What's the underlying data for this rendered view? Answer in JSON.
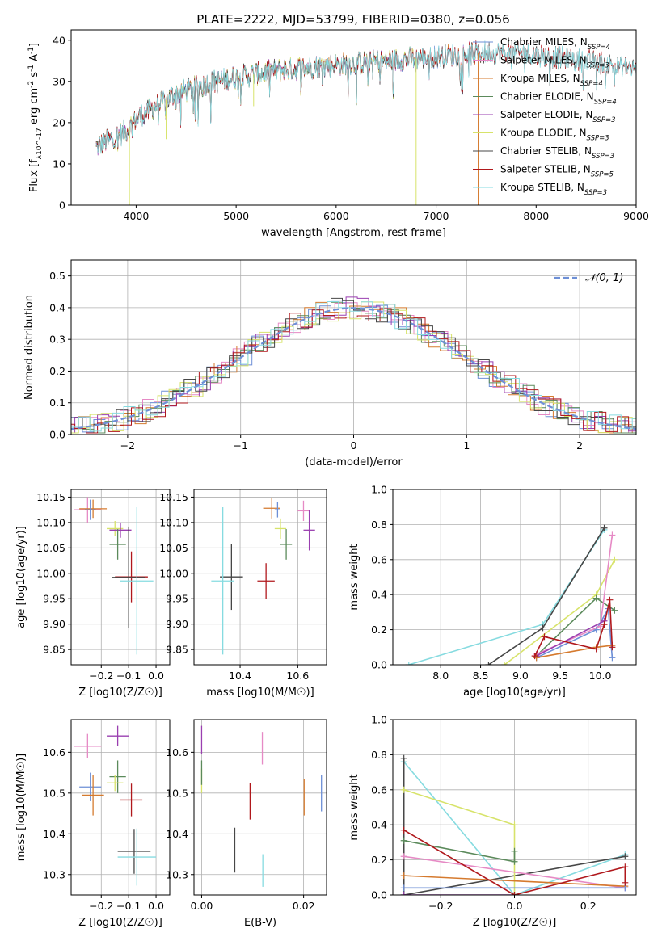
{
  "figure_title": "PLATE=2222, MJD=53799, FIBERID=0380, z=0.056",
  "series_colors": [
    "#6d8fd6",
    "#e68ac5",
    "#d57a2e",
    "#5b8a5b",
    "#9a3fb0",
    "#d7e36a",
    "#474747",
    "#b0181c",
    "#86dbe0"
  ],
  "chart_data": [
    {
      "id": "spectrum",
      "type": "line",
      "title": "PLATE=2222, MJD=53799, FIBERID=0380, z=0.056",
      "xlabel": "wavelength [Angstrom, rest frame]",
      "ylabel": "Flux [f_λ10^-17 erg cm^-2 s^-1 A^-1]",
      "xlim": [
        3350,
        9000
      ],
      "ylim": [
        0,
        42.5
      ],
      "xticks": [
        4000,
        5000,
        6000,
        7000,
        8000,
        9000
      ],
      "yticks": [
        0,
        10,
        20,
        30,
        40
      ],
      "grid": false,
      "legend_position": "top-right",
      "legend": [
        {
          "label": "Chabrier MILES, N_SSP=4",
          "color": "#6d8fd6"
        },
        {
          "label": "Salpeter MILES, N_SSP=3",
          "color": "#e68ac5"
        },
        {
          "label": "Kroupa MILES, N_SSP=4",
          "color": "#d57a2e"
        },
        {
          "label": "Chabrier ELODIE, N_SSP=4",
          "color": "#5b8a5b"
        },
        {
          "label": "Salpeter ELODIE, N_SSP=3",
          "color": "#9a3fb0"
        },
        {
          "label": "Kroupa ELODIE, N_SSP=3",
          "color": "#d7e36a"
        },
        {
          "label": "Chabrier STELIB, N_SSP=3",
          "color": "#474747"
        },
        {
          "label": "Salpeter STELIB, N_SSP=5",
          "color": "#b0181c"
        },
        {
          "label": "Kroupa STELIB, N_SSP=3",
          "color": "#86dbe0"
        }
      ],
      "continuum": [
        [
          3600,
          14
        ],
        [
          3900,
          18
        ],
        [
          4000,
          21
        ],
        [
          4200,
          24
        ],
        [
          4400,
          27
        ],
        [
          4800,
          30
        ],
        [
          5000,
          31
        ],
        [
          5500,
          33
        ],
        [
          6000,
          34
        ],
        [
          6500,
          35
        ],
        [
          7000,
          36
        ],
        [
          7500,
          37
        ],
        [
          8000,
          36.5
        ],
        [
          8500,
          35
        ],
        [
          9000,
          33
        ]
      ],
      "dips": [
        [
          3933,
          0
        ],
        [
          4300,
          16
        ],
        [
          5175,
          24
        ],
        [
          6800,
          0
        ],
        [
          7420,
          0
        ]
      ]
    },
    {
      "id": "residuals",
      "type": "histogram",
      "xlabel": "(data-model)/error",
      "ylabel": "Normed distribution",
      "xlim": [
        -2.5,
        2.5
      ],
      "ylim": [
        0,
        0.55
      ],
      "xticks": [
        -2,
        -1,
        0,
        1,
        2
      ],
      "yticks": [
        0.0,
        0.1,
        0.2,
        0.3,
        0.4,
        0.5
      ],
      "grid": true,
      "legend_position": "top-right",
      "reference_curve": {
        "label": "𝒩(0, 1)",
        "mean": 0,
        "sigma": 1,
        "color": "#6d8fd6",
        "style": "dashed"
      },
      "bin_width": 0.1
    },
    {
      "id": "age_vs_Z",
      "type": "errorbar",
      "xlabel": "Z [log10(Z/Z☉)]",
      "ylabel": "age [log10(age/yr)]",
      "xlim": [
        -0.31,
        0.05
      ],
      "ylim": [
        9.82,
        10.165
      ],
      "xticks": [
        -0.2,
        -0.1,
        0.0
      ],
      "yticks": [
        9.85,
        9.9,
        9.95,
        10.0,
        10.05,
        10.1,
        10.15
      ],
      "grid": true,
      "points": [
        {
          "x": -0.25,
          "y": 10.125,
          "xerr": 0.05,
          "yerr": 0.025,
          "color": "#e68ac5"
        },
        {
          "x": -0.23,
          "y": 10.127,
          "xerr": 0.05,
          "yerr": 0.018,
          "color": "#d57a2e"
        },
        {
          "x": -0.24,
          "y": 10.125,
          "xerr": 0.02,
          "yerr": 0.02,
          "color": "#6d8fd6"
        },
        {
          "x": -0.15,
          "y": 10.088,
          "xerr": 0.03,
          "yerr": 0.015,
          "color": "#d7e36a"
        },
        {
          "x": -0.13,
          "y": 10.085,
          "xerr": 0.04,
          "yerr": 0.015,
          "color": "#9a3fb0"
        },
        {
          "x": -0.14,
          "y": 10.057,
          "xerr": 0.03,
          "yerr": 0.03,
          "color": "#5b8a5b"
        },
        {
          "x": -0.09,
          "y": 9.993,
          "xerr": 0.06,
          "yerr": 0.05,
          "color": "#b0181c"
        },
        {
          "x": -0.1,
          "y": 9.992,
          "xerr": 0.06,
          "yerr": 0.1,
          "color": "#474747"
        },
        {
          "x": -0.07,
          "y": 9.985,
          "xerr": 0.06,
          "yerr": 0.145,
          "color": "#86dbe0"
        }
      ]
    },
    {
      "id": "age_vs_mass",
      "type": "errorbar",
      "xlabel": "mass [log10(M/M☉)]",
      "ylabel": "",
      "xlim": [
        10.24,
        10.7
      ],
      "ylim": [
        9.82,
        10.165
      ],
      "xticks": [
        10.4,
        10.6
      ],
      "yticks": [
        9.85,
        9.9,
        9.95,
        10.0,
        10.05,
        10.1,
        10.15
      ],
      "grid": true,
      "points": [
        {
          "x": 10.51,
          "y": 10.128,
          "xerr": 0.03,
          "yerr": 0.02,
          "color": "#d57a2e"
        },
        {
          "x": 10.53,
          "y": 10.125,
          "xerr": 0.01,
          "yerr": 0.015,
          "color": "#6d8fd6"
        },
        {
          "x": 10.62,
          "y": 10.123,
          "xerr": 0.02,
          "yerr": 0.02,
          "color": "#e68ac5"
        },
        {
          "x": 10.64,
          "y": 10.085,
          "xerr": 0.02,
          "yerr": 0.04,
          "color": "#9a3fb0"
        },
        {
          "x": 10.54,
          "y": 10.088,
          "xerr": 0.02,
          "yerr": 0.02,
          "color": "#d7e36a"
        },
        {
          "x": 10.56,
          "y": 10.057,
          "xerr": 0.02,
          "yerr": 0.03,
          "color": "#5b8a5b"
        },
        {
          "x": 10.49,
          "y": 9.985,
          "xerr": 0.03,
          "yerr": 0.035,
          "color": "#b0181c"
        },
        {
          "x": 10.37,
          "y": 9.993,
          "xerr": 0.04,
          "yerr": 0.065,
          "color": "#474747"
        },
        {
          "x": 10.34,
          "y": 9.985,
          "xerr": 0.04,
          "yerr": 0.145,
          "color": "#86dbe0"
        }
      ]
    },
    {
      "id": "weight_vs_age",
      "type": "line",
      "xlabel": "age [log10(age/yr)]",
      "ylabel": "mass weight",
      "xlim": [
        7.4,
        10.45
      ],
      "ylim": [
        0,
        1.0
      ],
      "xticks": [
        8.0,
        8.5,
        9.0,
        9.5,
        10.0
      ],
      "yticks": [
        0.0,
        0.2,
        0.4,
        0.6,
        0.8,
        1.0
      ],
      "grid": true,
      "series": [
        {
          "color": "#86dbe0",
          "x": [
            7.6,
            9.28,
            10.05
          ],
          "y": [
            0.0,
            0.23,
            0.77
          ]
        },
        {
          "color": "#474747",
          "x": [
            8.6,
            9.28,
            10.05
          ],
          "y": [
            0.0,
            0.21,
            0.78
          ]
        },
        {
          "color": "#d7e36a",
          "x": [
            8.8,
            9.95,
            10.18
          ],
          "y": [
            0.0,
            0.4,
            0.6
          ]
        },
        {
          "color": "#5b8a5b",
          "x": [
            9.2,
            9.95,
            10.18
          ],
          "y": [
            0.05,
            0.38,
            0.31
          ]
        },
        {
          "color": "#6d8fd6",
          "x": [
            9.2,
            9.95,
            10.1,
            10.15
          ],
          "y": [
            0.04,
            0.2,
            0.32,
            0.04
          ]
        },
        {
          "color": "#e68ac5",
          "x": [
            9.2,
            10.0,
            10.15
          ],
          "y": [
            0.06,
            0.22,
            0.74
          ]
        },
        {
          "color": "#9a3fb0",
          "x": [
            9.2,
            10.05
          ],
          "y": [
            0.05,
            0.25
          ]
        },
        {
          "color": "#d57a2e",
          "x": [
            9.2,
            9.95,
            10.15
          ],
          "y": [
            0.04,
            0.1,
            0.11
          ]
        },
        {
          "color": "#b0181c",
          "x": [
            9.18,
            9.3,
            9.95,
            10.05,
            10.12,
            10.15
          ],
          "y": [
            0.05,
            0.16,
            0.09,
            0.23,
            0.37,
            0.1
          ]
        }
      ]
    },
    {
      "id": "mass_vs_Z",
      "type": "errorbar",
      "xlabel": "Z [log10(Z/Z☉)]",
      "ylabel": "mass [log10(M/M☉)]",
      "xlim": [
        -0.31,
        0.05
      ],
      "ylim": [
        10.25,
        10.68
      ],
      "xticks": [
        -0.2,
        -0.1,
        0.0
      ],
      "yticks": [
        10.3,
        10.4,
        10.5,
        10.6
      ],
      "grid": true,
      "points": [
        {
          "x": -0.14,
          "y": 10.64,
          "xerr": 0.04,
          "yerr": 0.025,
          "color": "#9a3fb0"
        },
        {
          "x": -0.25,
          "y": 10.615,
          "xerr": 0.05,
          "yerr": 0.03,
          "color": "#e68ac5"
        },
        {
          "x": -0.14,
          "y": 10.54,
          "xerr": 0.03,
          "yerr": 0.04,
          "color": "#5b8a5b"
        },
        {
          "x": -0.15,
          "y": 10.525,
          "xerr": 0.03,
          "yerr": 0.02,
          "color": "#d7e36a"
        },
        {
          "x": -0.24,
          "y": 10.515,
          "xerr": 0.04,
          "yerr": 0.035,
          "color": "#6d8fd6"
        },
        {
          "x": -0.23,
          "y": 10.495,
          "xerr": 0.04,
          "yerr": 0.05,
          "color": "#d57a2e"
        },
        {
          "x": -0.09,
          "y": 10.483,
          "xerr": 0.04,
          "yerr": 0.04,
          "color": "#b0181c"
        },
        {
          "x": -0.08,
          "y": 10.357,
          "xerr": 0.06,
          "yerr": 0.055,
          "color": "#474747"
        },
        {
          "x": -0.07,
          "y": 10.343,
          "xerr": 0.07,
          "yerr": 0.07,
          "color": "#86dbe0"
        }
      ]
    },
    {
      "id": "mass_vs_ebv",
      "type": "errorbar",
      "xlabel": "E(B-V)",
      "ylabel": "",
      "xlim": [
        -0.0015,
        0.0245
      ],
      "ylim": [
        10.25,
        10.68
      ],
      "xticks": [
        0.0,
        0.02
      ],
      "yticks": [
        10.3,
        10.4,
        10.5,
        10.6
      ],
      "grid": true,
      "points": [
        {
          "x": 0.0,
          "y": 10.63,
          "xerr": 0,
          "yerr": 0.035,
          "color": "#9a3fb0"
        },
        {
          "x": 0.0,
          "y": 10.53,
          "xerr": 0,
          "yerr": 0.03,
          "color": "#d7e36a"
        },
        {
          "x": 0.0,
          "y": 10.55,
          "xerr": 0,
          "yerr": 0.03,
          "color": "#5b8a5b"
        },
        {
          "x": 0.0119,
          "y": 10.61,
          "xerr": 0,
          "yerr": 0.04,
          "color": "#e68ac5"
        },
        {
          "x": 0.0095,
          "y": 10.48,
          "xerr": 0,
          "yerr": 0.045,
          "color": "#b0181c"
        },
        {
          "x": 0.0065,
          "y": 10.36,
          "xerr": 0,
          "yerr": 0.055,
          "color": "#474747"
        },
        {
          "x": 0.012,
          "y": 10.31,
          "xerr": 0,
          "yerr": 0.04,
          "color": "#86dbe0"
        },
        {
          "x": 0.0201,
          "y": 10.49,
          "xerr": 0,
          "yerr": 0.045,
          "color": "#d57a2e"
        },
        {
          "x": 0.0235,
          "y": 10.5,
          "xerr": 0,
          "yerr": 0.045,
          "color": "#6d8fd6"
        }
      ]
    },
    {
      "id": "weight_vs_Z",
      "type": "line",
      "xlabel": "Z [log10(Z/Z☉)]",
      "ylabel": "mass weight",
      "xlim": [
        -0.33,
        0.33
      ],
      "ylim": [
        0,
        1.0
      ],
      "xticks": [
        -0.2,
        0.0,
        0.2
      ],
      "yticks": [
        0.0,
        0.2,
        0.4,
        0.6,
        0.8,
        1.0
      ],
      "grid": true,
      "series": [
        {
          "color": "#86dbe0",
          "x": [
            -0.3,
            0.0,
            0.3
          ],
          "y": [
            0.76,
            0.0,
            0.23
          ]
        },
        {
          "color": "#474747",
          "x": [
            -0.3,
            -0.3,
            0.3
          ],
          "y": [
            0.78,
            0.0,
            0.22
          ]
        },
        {
          "color": "#d7e36a",
          "x": [
            -0.3,
            0.0,
            0.0
          ],
          "y": [
            0.6,
            0.4,
            0.0
          ]
        },
        {
          "color": "#5b8a5b",
          "x": [
            -0.3,
            0.0,
            0.0
          ],
          "y": [
            0.31,
            0.19,
            0.25
          ]
        },
        {
          "color": "#e68ac5",
          "x": [
            -0.3,
            0.3
          ],
          "y": [
            0.22,
            0.04
          ]
        },
        {
          "color": "#d57a2e",
          "x": [
            -0.3,
            0.3
          ],
          "y": [
            0.11,
            0.05
          ]
        },
        {
          "color": "#6d8fd6",
          "x": [
            -0.3,
            0.3
          ],
          "y": [
            0.04,
            0.04
          ]
        },
        {
          "color": "#9a3fb0",
          "x": [
            -0.3,
            0.0
          ],
          "y": [
            0.0,
            0.0
          ]
        },
        {
          "color": "#b0181c",
          "x": [
            -0.3,
            0.0,
            0.3,
            0.3
          ],
          "y": [
            0.37,
            0.0,
            0.16,
            0.07
          ]
        }
      ]
    }
  ]
}
